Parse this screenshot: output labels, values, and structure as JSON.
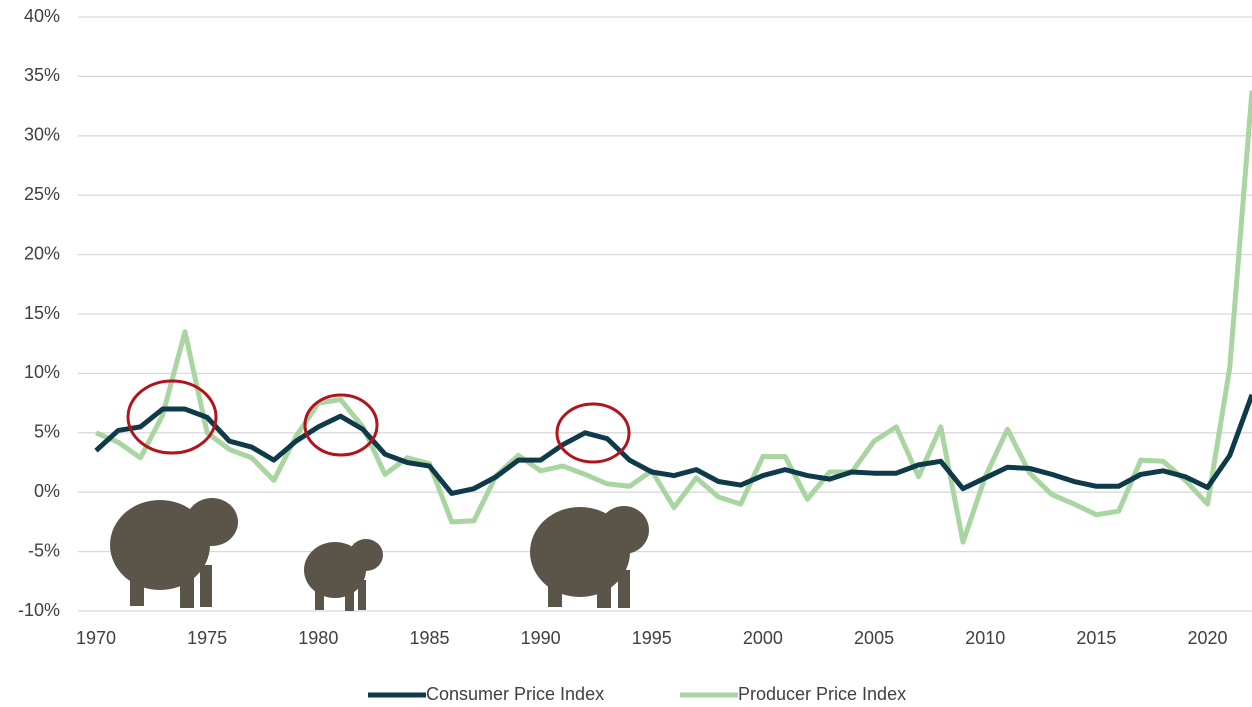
{
  "chart_data": {
    "type": "line",
    "x": [
      1970,
      1971,
      1972,
      1973,
      1974,
      1975,
      1976,
      1977,
      1978,
      1979,
      1980,
      1981,
      1982,
      1983,
      1984,
      1985,
      1986,
      1987,
      1988,
      1989,
      1990,
      1991,
      1992,
      1993,
      1994,
      1995,
      1996,
      1997,
      1998,
      1999,
      2000,
      2001,
      2002,
      2003,
      2004,
      2005,
      2006,
      2007,
      2008,
      2009,
      2010,
      2011,
      2012,
      2013,
      2014,
      2015,
      2016,
      2017,
      2018,
      2019,
      2020,
      2021,
      2022
    ],
    "series": [
      {
        "name": "Consumer Price Index",
        "color": "#0e3a4a",
        "values": [
          3.5,
          5.2,
          5.5,
          7.0,
          7.0,
          6.3,
          4.3,
          3.8,
          2.7,
          4.3,
          5.5,
          6.4,
          5.3,
          3.2,
          2.5,
          2.2,
          -0.1,
          0.3,
          1.3,
          2.7,
          2.7,
          4.0,
          5.0,
          4.5,
          2.7,
          1.7,
          1.4,
          1.9,
          0.9,
          0.6,
          1.4,
          1.9,
          1.4,
          1.1,
          1.7,
          1.6,
          1.6,
          2.3,
          2.6,
          0.3,
          1.2,
          2.1,
          2.0,
          1.5,
          0.9,
          0.5,
          0.5,
          1.5,
          1.8,
          1.3,
          0.4,
          3.1,
          8.2
        ]
      },
      {
        "name": "Producer Price Index",
        "color": "#a8d5a0",
        "values": [
          5.0,
          4.2,
          2.9,
          6.5,
          13.5,
          5.0,
          3.6,
          2.9,
          1.0,
          4.7,
          7.5,
          7.8,
          5.5,
          1.5,
          2.9,
          2.4,
          -2.5,
          -2.4,
          1.4,
          3.1,
          1.8,
          2.2,
          1.5,
          0.7,
          0.5,
          1.8,
          -1.3,
          1.2,
          -0.4,
          -1.0,
          3.0,
          3.0,
          -0.6,
          1.7,
          1.7,
          4.3,
          5.5,
          1.3,
          5.5,
          -4.2,
          1.3,
          5.3,
          1.6,
          -0.2,
          -1.0,
          -1.9,
          -1.6,
          2.7,
          2.6,
          1.0,
          -1.0,
          10.5,
          33.8
        ]
      }
    ],
    "xlim": [
      1970,
      2022
    ],
    "xticks": [
      1970,
      1975,
      1980,
      1985,
      1990,
      1995,
      2000,
      2005,
      2010,
      2015,
      2020
    ],
    "ylim": [
      -10,
      40
    ],
    "yticks": [
      {
        "value": -10,
        "label": "-10%"
      },
      {
        "value": -5,
        "label": "-5%"
      },
      {
        "value": 0,
        "label": "0%"
      },
      {
        "value": 5,
        "label": "5%"
      },
      {
        "value": 10,
        "label": "10%"
      },
      {
        "value": 15,
        "label": "15%"
      },
      {
        "value": 20,
        "label": "20%"
      },
      {
        "value": 25,
        "label": "25%"
      },
      {
        "value": 30,
        "label": "30%"
      },
      {
        "value": 35,
        "label": "35%"
      },
      {
        "value": 40,
        "label": "40%"
      }
    ],
    "grid": true,
    "legend": "bottom"
  }
}
